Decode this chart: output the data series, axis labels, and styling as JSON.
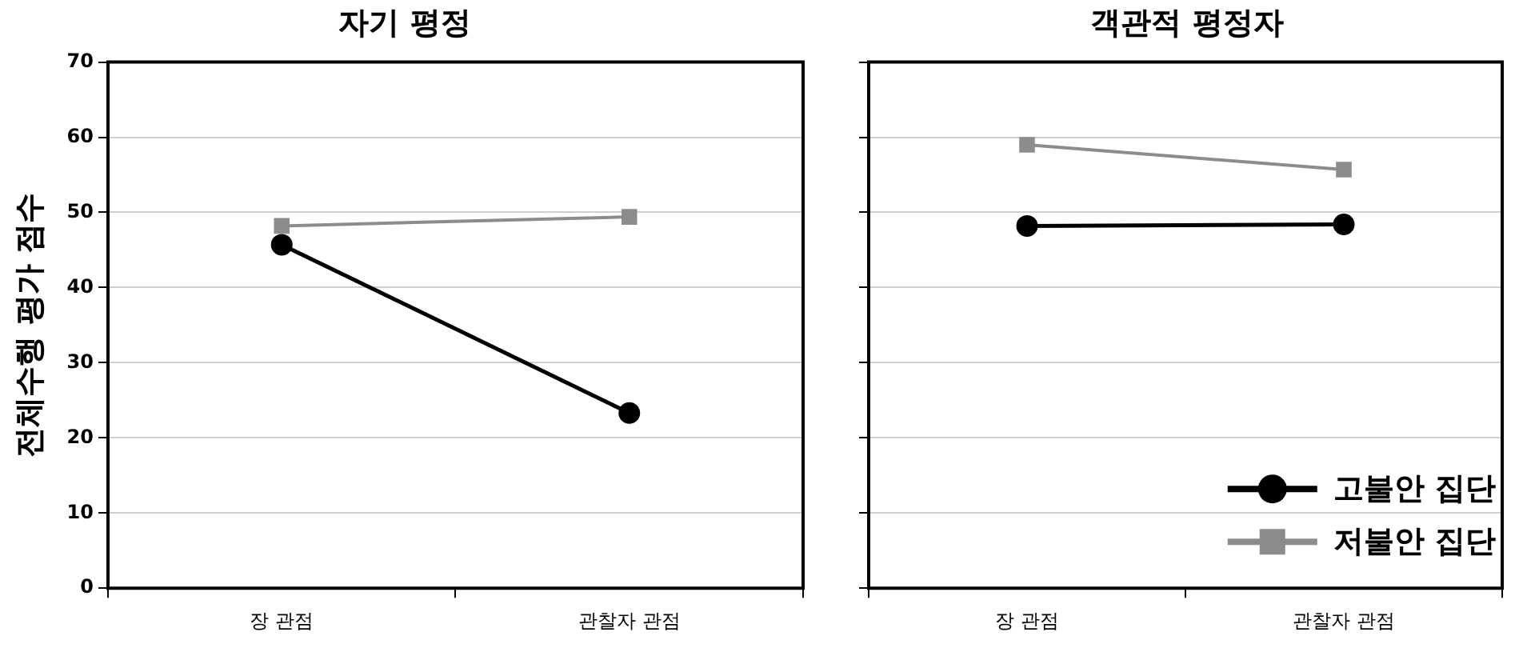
{
  "chart_data": [
    {
      "type": "line",
      "title": "자기 평정",
      "ylabel": "전체수행 평가 점수",
      "categories": [
        "장 관점",
        "관찰자 관점"
      ],
      "series": [
        {
          "color": "#000000",
          "marker": "circle",
          "values": [
            45.7,
            23.3
          ]
        },
        {
          "color": "#8c8c8c",
          "marker": "square",
          "values": [
            48.2,
            49.4
          ]
        }
      ],
      "ylim": [
        0,
        70
      ],
      "yticks": [
        0,
        10,
        20,
        30,
        40,
        50,
        60,
        70
      ],
      "grid": "y",
      "legend": false
    },
    {
      "type": "line",
      "title": "객관적 평정자",
      "categories": [
        "장 관점",
        "관찰자 관점"
      ],
      "series": [
        {
          "name": "고불안 집단",
          "color": "#000000",
          "marker": "circle",
          "values": [
            48.2,
            48.4
          ]
        },
        {
          "name": "저불안 집단",
          "color": "#8c8c8c",
          "marker": "square",
          "values": [
            59.0,
            55.7
          ]
        }
      ],
      "ylim": [
        0,
        70
      ],
      "yticks": [
        0,
        10,
        20,
        30,
        40,
        50,
        60,
        70
      ],
      "grid": "y",
      "legend": "bottom right",
      "tick_labels": "x"
    }
  ]
}
